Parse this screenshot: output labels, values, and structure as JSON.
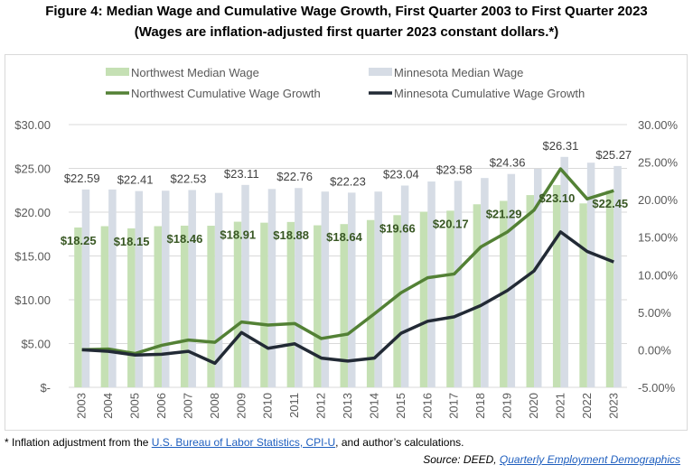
{
  "title": "Figure 4: Median Wage and Cumulative Wage Growth, First Quarter 2003 to First Quarter 2023",
  "subtitle": "(Wages are inflation-adjusted first quarter 2023 constant dollars.*)",
  "footnote": {
    "prefix": "* Inflation adjustment from the ",
    "link": "U.S. Bureau of Labor Statistics, CPI-U",
    "suffix": ", and author’s calculations."
  },
  "source": {
    "prefix": "Source: DEED, ",
    "link": "Quarterly Employment Demographics"
  },
  "colors": {
    "nw_bar": "#c5e0b4",
    "mn_bar": "#d6dce5",
    "nw_line": "#538135",
    "mn_line": "#222a35",
    "nw_label": "#385723",
    "mn_label": "#404040",
    "grid": "#d9d9d9",
    "axis_text": "#595959"
  },
  "chart_data": {
    "type": "bar+line",
    "title": "Figure 4: Median Wage and Cumulative Wage Growth, First Quarter 2003 to First Quarter 2023",
    "categories": [
      "2003",
      "2004",
      "2005",
      "2006",
      "2007",
      "2008",
      "2009",
      "2010",
      "2011",
      "2012",
      "2013",
      "2014",
      "2015",
      "2016",
      "2017",
      "2018",
      "2019",
      "2020",
      "2021",
      "2022",
      "2023"
    ],
    "y_left": {
      "ylim": [
        0,
        30
      ],
      "ticks": [
        0,
        5,
        10,
        15,
        20,
        25,
        30
      ],
      "tick_labels": [
        "$-",
        "$5.00",
        "$10.00",
        "$15.00",
        "$20.00",
        "$25.00",
        "$30.00"
      ]
    },
    "y_right": {
      "ylim": [
        -5,
        30
      ],
      "ticks": [
        -5,
        0,
        5,
        10,
        15,
        20,
        25,
        30
      ],
      "tick_labels": [
        "-5.00%",
        "0.00%",
        "5.00%",
        "10.00%",
        "15.00%",
        "20.00%",
        "25.00%",
        "30.00%"
      ]
    },
    "grid": true,
    "legend": {
      "placement": "top",
      "entries": [
        {
          "label": "Northwest Median Wage",
          "type": "bar",
          "series": "nw_wage"
        },
        {
          "label": "Minnesota Median Wage",
          "type": "bar",
          "series": "mn_wage"
        },
        {
          "label": "Northwest Cumulative Wage Growth",
          "type": "line",
          "series": "nw_growth"
        },
        {
          "label": "Minnesota Cumulative Wage Growth",
          "type": "line",
          "series": "mn_growth"
        }
      ]
    },
    "series": [
      {
        "name": "Northwest Median Wage",
        "key": "nw_wage",
        "type": "bar",
        "axis": "left",
        "values": [
          18.25,
          18.4,
          18.15,
          18.4,
          18.46,
          18.45,
          18.91,
          18.8,
          18.88,
          18.5,
          18.64,
          19.1,
          19.66,
          20.05,
          20.17,
          20.9,
          21.29,
          21.95,
          23.1,
          21.0,
          22.45
        ],
        "labels": [
          "$18.25",
          null,
          "$18.15",
          null,
          "$18.46",
          null,
          "$18.91",
          null,
          "$18.88",
          null,
          "$18.64",
          null,
          "$19.66",
          null,
          "$20.17",
          null,
          "$21.29",
          null,
          "$23.10",
          null,
          "$22.45"
        ]
      },
      {
        "name": "Minnesota Median Wage",
        "key": "mn_wage",
        "type": "bar",
        "axis": "left",
        "values": [
          22.59,
          22.59,
          22.41,
          22.45,
          22.53,
          22.2,
          23.11,
          22.65,
          22.76,
          22.35,
          22.23,
          22.35,
          23.04,
          23.5,
          23.58,
          23.9,
          24.36,
          24.95,
          26.31,
          25.65,
          25.27
        ],
        "labels": [
          "$22.59",
          null,
          "$22.41",
          null,
          "$22.53",
          null,
          "$23.11",
          null,
          "$22.76",
          null,
          "$22.23",
          null,
          "$23.04",
          null,
          "$23.58",
          null,
          "$24.36",
          null,
          "$26.31",
          null,
          "$25.27"
        ]
      },
      {
        "name": "Northwest Cumulative Wage Growth",
        "key": "nw_growth",
        "type": "line",
        "axis": "right",
        "values": [
          0.0,
          0.1,
          -0.5,
          0.6,
          1.3,
          1.0,
          3.7,
          3.3,
          3.5,
          1.5,
          2.1,
          4.8,
          7.6,
          9.6,
          10.1,
          13.7,
          15.7,
          18.6,
          24.1,
          20.1,
          21.2
        ]
      },
      {
        "name": "Minnesota Cumulative Wage Growth",
        "key": "mn_growth",
        "type": "line",
        "axis": "right",
        "values": [
          0.0,
          -0.2,
          -0.7,
          -0.6,
          -0.2,
          -1.8,
          2.3,
          0.2,
          0.8,
          -1.1,
          -1.5,
          -1.1,
          2.2,
          3.8,
          4.4,
          5.9,
          7.9,
          10.5,
          15.7,
          13.1,
          11.7
        ]
      }
    ]
  }
}
